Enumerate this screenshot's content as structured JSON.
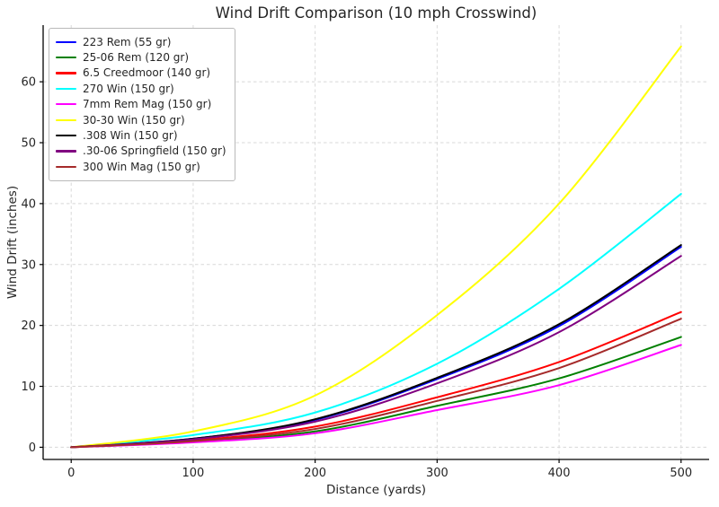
{
  "chart_data": {
    "type": "line",
    "title": "Wind Drift Comparison (10 mph Crosswind)",
    "xlabel": "Distance (yards)",
    "ylabel": "Wind Drift (inches)",
    "x": [
      0,
      100,
      200,
      300,
      400,
      500
    ],
    "xticks": [
      0,
      100,
      200,
      300,
      400,
      500
    ],
    "yticks": [
      0,
      10,
      20,
      30,
      40,
      50,
      60
    ],
    "xlim": [
      -23,
      523
    ],
    "ylim": [
      -2,
      69.3
    ],
    "grid": true,
    "grid_style": "dashed",
    "legend_position": "upper-left",
    "series": [
      {
        "name": "223 Rem (55 gr)",
        "color": "#0000ff",
        "values": [
          0,
          1.4,
          4.5,
          11.2,
          19.9,
          32.9
        ]
      },
      {
        "name": "25-06 Rem (120 gr)",
        "color": "#008000",
        "values": [
          0,
          0.9,
          2.6,
          6.8,
          11.3,
          18.1
        ]
      },
      {
        "name": "6.5 Creedmoor (140 gr)",
        "color": "#ff0000",
        "values": [
          0,
          1.1,
          3.4,
          8.2,
          14.0,
          22.2
        ]
      },
      {
        "name": "270 Win (150 gr)",
        "color": "#00ffff",
        "values": [
          0,
          2.0,
          5.7,
          13.7,
          26.0,
          41.6
        ]
      },
      {
        "name": "7mm Rem Mag (150 gr)",
        "color": "#ff00ff",
        "values": [
          0,
          0.8,
          2.3,
          6.1,
          10.2,
          16.8
        ]
      },
      {
        "name": "30-30 Win (150 gr)",
        "color": "#ffff00",
        "values": [
          0,
          2.6,
          8.5,
          21.7,
          40.0,
          65.8
        ]
      },
      {
        "name": ".308 Win (150 gr)",
        "color": "#000000",
        "values": [
          0,
          1.4,
          4.6,
          11.4,
          20.2,
          33.2
        ]
      },
      {
        "name": ".30-06 Springfield (150 gr)",
        "color": "#800080",
        "values": [
          0,
          1.3,
          4.2,
          10.5,
          18.9,
          31.4
        ]
      },
      {
        "name": "300 Win Mag (150 gr)",
        "color": "#a52a2a",
        "values": [
          0,
          1.0,
          3.0,
          7.6,
          13.0,
          21.1
        ]
      }
    ],
    "colors": {
      "background": "#ffffff",
      "grid": "#d8d8d8",
      "spine": "#000000",
      "text": "#262626"
    }
  }
}
